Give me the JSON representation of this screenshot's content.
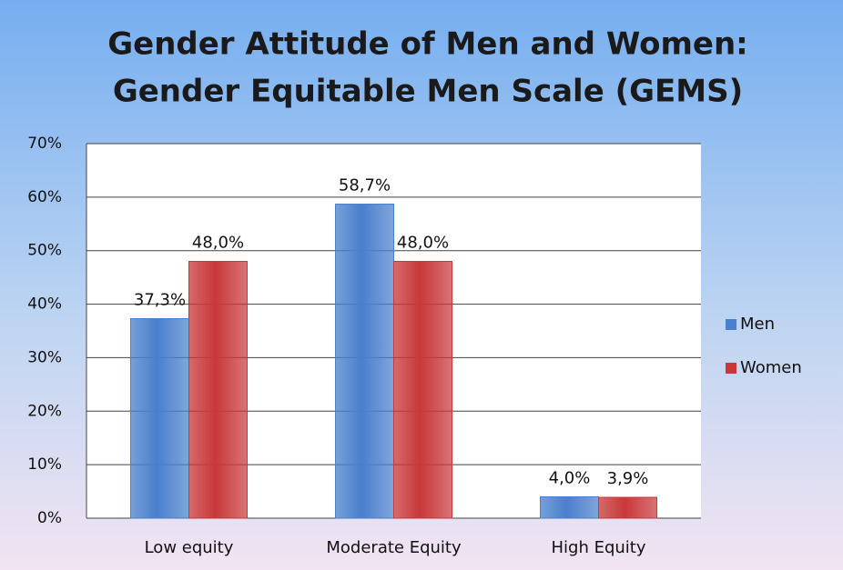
{
  "chart_data": {
    "type": "bar",
    "title": [
      "Gender Attitude of Men and Women:",
      "Gender Equitable Men Scale (GEMS)"
    ],
    "categories": [
      "Low equity",
      "Moderate Equity",
      "High Equity"
    ],
    "series": [
      {
        "name": "Men",
        "color": "#4a7fcc",
        "values": [
          37.3,
          58.7,
          4.0
        ],
        "value_labels": [
          "37,3%",
          "58,7%",
          "4,0%"
        ]
      },
      {
        "name": "Women",
        "color": "#c8383a",
        "values": [
          48.0,
          48.0,
          3.9
        ],
        "value_labels": [
          "48,0%",
          "48,0%",
          "3,9%"
        ]
      }
    ],
    "ylim": [
      0,
      70
    ],
    "yticks": [
      {
        "value": 0,
        "label": "0%"
      },
      {
        "value": 10,
        "label": "10%"
      },
      {
        "value": 20,
        "label": "20%"
      },
      {
        "value": 30,
        "label": "30%"
      },
      {
        "value": 40,
        "label": "40%"
      },
      {
        "value": 50,
        "label": "50%"
      },
      {
        "value": 60,
        "label": "60%"
      },
      {
        "value": 70,
        "label": "70%"
      }
    ],
    "grid": true,
    "legend": "right"
  }
}
